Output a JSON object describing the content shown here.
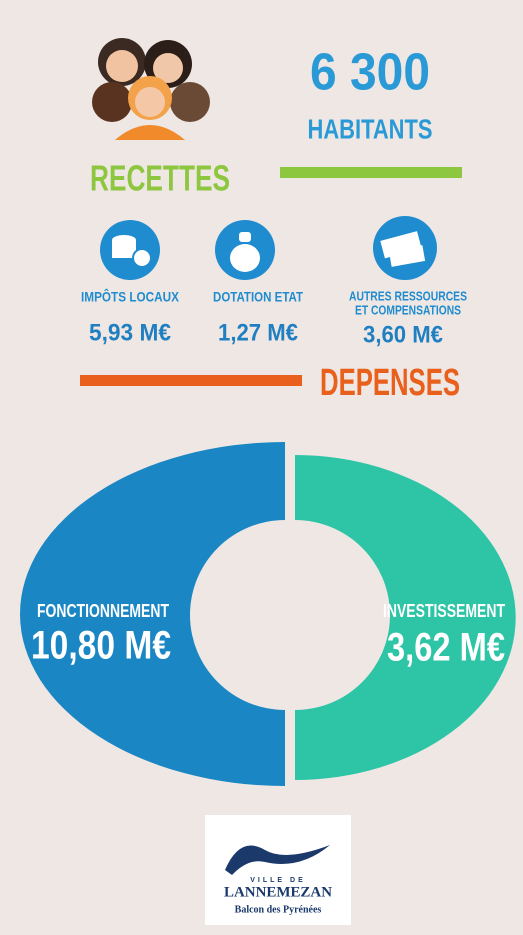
{
  "header": {
    "population": "6 300",
    "population_label": "HABITANTS"
  },
  "recettes": {
    "title": "RECETTES",
    "items": [
      {
        "label_lines": [
          "IMPÔTS LOCAUX"
        ],
        "value": "5,93 M€"
      },
      {
        "label_lines": [
          "DOTATION ETAT"
        ],
        "value": "1,27 M€"
      },
      {
        "label_lines": [
          "AUTRES RESSOURCES",
          "ET COMPENSATIONS"
        ],
        "value": "3,60 M€"
      }
    ]
  },
  "depenses": {
    "title": "DEPENSES",
    "items": [
      {
        "label": "FONCTIONNEMENT",
        "value": "10,80 M€"
      },
      {
        "label": "INVESTISSEMENT",
        "value": "3,62 M€"
      }
    ]
  },
  "logo": {
    "line1": "VILLE DE",
    "line2": "LANNEMEZAN",
    "line3": "Balcon des Pyrénées"
  }
}
